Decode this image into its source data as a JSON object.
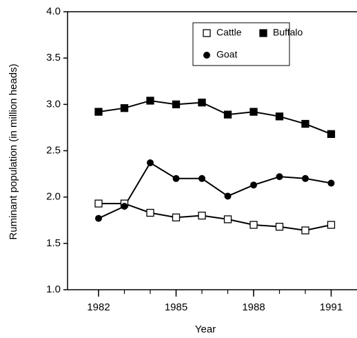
{
  "chart_data": {
    "type": "line",
    "xlabel": "Year",
    "ylabel": "Ruminant population (in million heads)",
    "x": [
      1982,
      1983,
      1984,
      1985,
      1986,
      1987,
      1988,
      1989,
      1990,
      1991
    ],
    "xlim": [
      1980.8,
      1992
    ],
    "xticks": [
      1982,
      1985,
      1988,
      1991
    ],
    "ylim": [
      1,
      4
    ],
    "yticks": [
      {
        "value": 1,
        "label": "1.0"
      },
      1.5,
      {
        "value": 2,
        "label": "2.0"
      },
      2.5,
      {
        "value": 3,
        "label": "3.0"
      },
      3.5,
      {
        "value": 4,
        "label": "4.0"
      }
    ],
    "series": [
      {
        "name": "Cattle",
        "color": "#000000",
        "marker": "square-open",
        "values": [
          1.93,
          1.93,
          1.83,
          1.78,
          1.8,
          1.76,
          1.7,
          1.68,
          1.64,
          1.7
        ]
      },
      {
        "name": "Buffalo",
        "color": "#000000",
        "marker": "square",
        "values": [
          2.92,
          2.96,
          3.04,
          3.0,
          3.02,
          2.89,
          2.92,
          2.87,
          2.79,
          2.68
        ]
      },
      {
        "name": "Goat",
        "color": "#000000",
        "marker": "circle",
        "values": [
          1.77,
          1.9,
          2.37,
          2.2,
          2.2,
          2.01,
          2.13,
          2.22,
          2.2,
          2.15
        ]
      }
    ]
  }
}
